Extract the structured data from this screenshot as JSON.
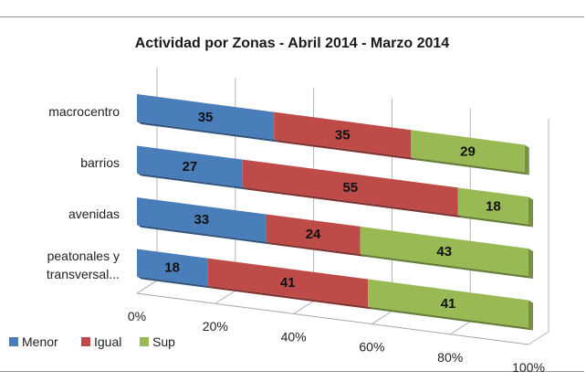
{
  "chart_data": {
    "type": "bar",
    "orientation": "horizontal",
    "stacked": true,
    "percent": true,
    "three_d": true,
    "title": "Actividad por Zonas - Abril 2014 - Marzo 2014",
    "categories": [
      "macrocentro",
      "barrios",
      "avenidas",
      "peatonales y transversal..."
    ],
    "category_label_lines": [
      [
        "macrocentro"
      ],
      [
        "barrios"
      ],
      [
        "avenidas"
      ],
      [
        "peatonales y",
        "transversal..."
      ]
    ],
    "series": [
      {
        "name": "Menor",
        "values": [
          35,
          27,
          33,
          18
        ],
        "color": "#4a7ebb"
      },
      {
        "name": "Igual",
        "values": [
          35,
          55,
          24,
          41
        ],
        "color": "#be4b48"
      },
      {
        "name": "Sup",
        "values": [
          29,
          18,
          43,
          41
        ],
        "color": "#98b954"
      }
    ],
    "xticks": [
      "0%",
      "20%",
      "40%",
      "60%",
      "80%",
      "100%"
    ],
    "xlim": [
      0,
      100
    ],
    "grid": true,
    "legend_position": "bottom-left"
  }
}
